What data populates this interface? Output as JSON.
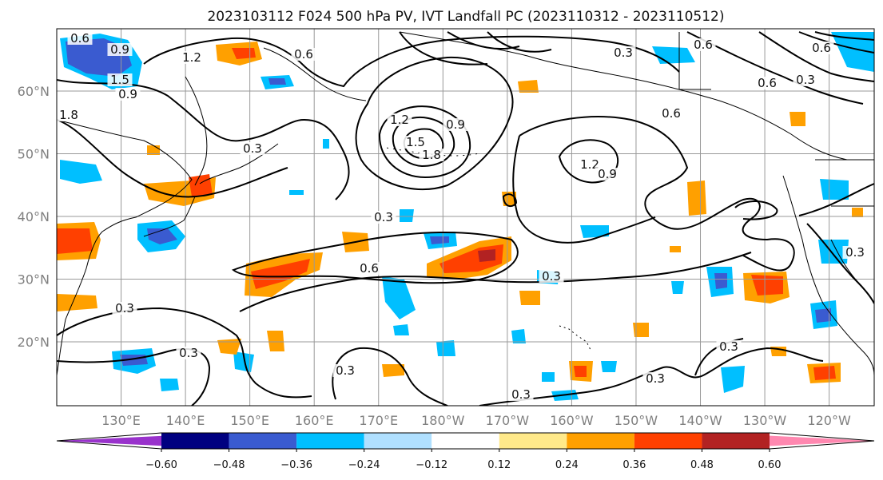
{
  "title": "2023103112 F024 500 hPa PV, IVT Landfall PC (2023110312 - 2023110512)",
  "map": {
    "lat_ticks": [
      {
        "label": "60°N",
        "lat": 60
      },
      {
        "label": "50°N",
        "lat": 50
      },
      {
        "label": "40°N",
        "lat": 40
      },
      {
        "label": "30°N",
        "lat": 30
      },
      {
        "label": "20°N",
        "lat": 20
      }
    ],
    "lon_ticks": [
      {
        "label": "130°E",
        "lon": 130
      },
      {
        "label": "140°E",
        "lon": 140
      },
      {
        "label": "150°E",
        "lon": 150
      },
      {
        "label": "160°E",
        "lon": 160
      },
      {
        "label": "170°E",
        "lon": 170
      },
      {
        "label": "180°W",
        "lon": 180
      },
      {
        "label": "170°W",
        "lon": 190
      },
      {
        "label": "160°W",
        "lon": 200
      },
      {
        "label": "150°W",
        "lon": 210
      },
      {
        "label": "140°W",
        "lon": 220
      },
      {
        "label": "130°W",
        "lon": 230
      },
      {
        "label": "120°W",
        "lon": 240
      }
    ],
    "contour_labels": [
      "0.6",
      "0.9",
      "1.2",
      "1.5",
      "1.8",
      "0.3",
      "0.6",
      "0.3",
      "1.2",
      "0.9",
      "0.6",
      "0.6",
      "0.3",
      "0.6",
      "0.3",
      "0.3",
      "0.3",
      "0.3",
      "0.3",
      "0.3",
      "0.3",
      "0.9",
      "1.2",
      "1.8",
      "1.5",
      "0.9",
      "0.3",
      "0.6",
      "0.6",
      "0.3"
    ]
  },
  "colorbar": {
    "ticks": [
      "−0.60",
      "−0.48",
      "−0.36",
      "−0.24",
      "−0.12",
      "0.12",
      "0.24",
      "0.36",
      "0.48",
      "0.60"
    ],
    "colors": [
      "#9932cc",
      "#000080",
      "#3a5bd0",
      "#00bfff",
      "#b0e0ff",
      "#ffffff",
      "#ffe98a",
      "#ffa000",
      "#ff4000",
      "#b22222",
      "#ff88b0"
    ]
  }
}
